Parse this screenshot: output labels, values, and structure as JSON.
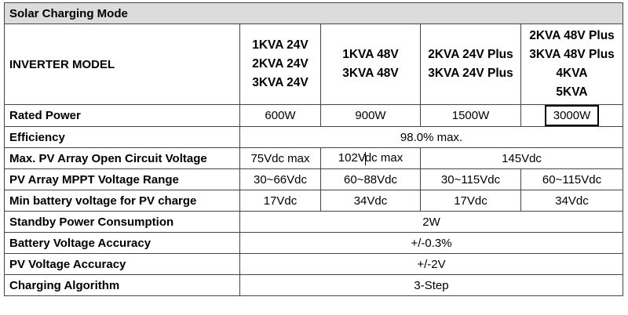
{
  "title": "Solar Charging Mode",
  "header": {
    "label": "INVERTER MODEL",
    "columns": [
      [
        "1KVA 24V",
        "2KVA 24V",
        "3KVA 24V"
      ],
      [
        "1KVA 48V",
        "3KVA 48V"
      ],
      [
        "2KVA 24V Plus",
        "3KVA 24V Plus"
      ],
      [
        "2KVA 48V Plus",
        "3KVA 48V Plus",
        "4KVA",
        "5KVA"
      ]
    ]
  },
  "rows": {
    "rated_power": {
      "label": "Rated Power",
      "values": [
        "600W",
        "900W",
        "1500W",
        "3000W"
      ]
    },
    "efficiency": {
      "label": "Efficiency",
      "value": "98.0% max."
    },
    "max_pv_voltage": {
      "label": "Max. PV Array Open Circuit Voltage",
      "v1": "75Vdc max",
      "v2a": "102V",
      "v2b": "dc max",
      "v3": "145Vdc"
    },
    "mppt_range": {
      "label": "PV Array MPPT Voltage Range",
      "values": [
        "30~66Vdc",
        "60~88Vdc",
        "30~115Vdc",
        "60~115Vdc"
      ]
    },
    "min_battery": {
      "label": "Min battery voltage for PV charge",
      "values": [
        "17Vdc",
        "34Vdc",
        "17Vdc",
        "34Vdc"
      ]
    },
    "standby": {
      "label": "Standby Power Consumption",
      "value": "2W"
    },
    "battery_accuracy": {
      "label": "Battery Voltage Accuracy",
      "value": "+/-0.3%"
    },
    "pv_accuracy": {
      "label": "PV Voltage Accuracy",
      "value": "+/-2V"
    },
    "algorithm": {
      "label": "Charging Algorithm",
      "value": "3-Step"
    }
  }
}
